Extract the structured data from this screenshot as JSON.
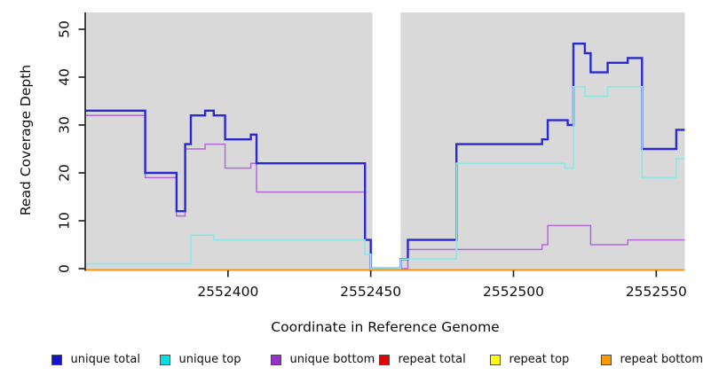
{
  "figure": {
    "background": "#ffffff",
    "panel_background": "#d9d9d9",
    "axis_color": "#262626",
    "legend_swatch_border": "#4a4a4a"
  },
  "chart_data": {
    "type": "line",
    "subtype": "step-after",
    "title": "",
    "xlabel": "Coordinate in Reference Genome",
    "ylabel": "Read Coverage Depth",
    "xlim": [
      2552350,
      2552560
    ],
    "ylim": [
      0,
      53.8
    ],
    "x_ticks": [
      "2552400",
      "2552450",
      "2552500",
      "2552550"
    ],
    "x_tick_values": [
      2552400,
      2552450,
      2552500,
      2552550
    ],
    "y_ticks": [
      "0",
      "10",
      "20",
      "30",
      "40",
      "50"
    ],
    "y_tick_values": [
      0,
      10,
      20,
      30,
      40,
      50
    ],
    "grid": false,
    "legend_position": "bottom",
    "masked_region": [
      2552450.6,
      2552460.5
    ],
    "series": [
      {
        "name": "unique total",
        "line_color": "#2a2ad0",
        "legend_color": "#1414cf",
        "width": 2.4,
        "dy": 0,
        "steps": [
          [
            2552350,
            33
          ],
          [
            2552371,
            20
          ],
          [
            2552382,
            12
          ],
          [
            2552385,
            26
          ],
          [
            2552387,
            32
          ],
          [
            2552392,
            33
          ],
          [
            2552395,
            32
          ],
          [
            2552399,
            27
          ],
          [
            2552408,
            28
          ],
          [
            2552410,
            22
          ],
          [
            2552448,
            6
          ],
          [
            2552450,
            0
          ],
          [
            2552460.5,
            2
          ],
          [
            2552463,
            6
          ],
          [
            2552480,
            26
          ],
          [
            2552510,
            27
          ],
          [
            2552512,
            31
          ],
          [
            2552519,
            30
          ],
          [
            2552521,
            47
          ],
          [
            2552525,
            45
          ],
          [
            2552527,
            41
          ],
          [
            2552533,
            43
          ],
          [
            2552540,
            44
          ],
          [
            2552545,
            25
          ],
          [
            2552557,
            29
          ]
        ]
      },
      {
        "name": "unique top",
        "line_color": "#8fe8e6",
        "legend_color": "#00e2e2",
        "width": 1.7,
        "dy": 0,
        "steps": [
          [
            2552350,
            1
          ],
          [
            2552387,
            7
          ],
          [
            2552395,
            6
          ],
          [
            2552448,
            3
          ],
          [
            2552450,
            0
          ],
          [
            2552460.5,
            2
          ],
          [
            2552480,
            22
          ],
          [
            2552518,
            21
          ],
          [
            2552521,
            38
          ],
          [
            2552525,
            36
          ],
          [
            2552533,
            38
          ],
          [
            2552545,
            19
          ],
          [
            2552557,
            23
          ]
        ]
      },
      {
        "name": "unique bottom",
        "line_color": "#b269d8",
        "legend_color": "#9932cc",
        "width": 1.5,
        "dy": 0,
        "steps": [
          [
            2552350,
            32
          ],
          [
            2552371,
            19
          ],
          [
            2552382,
            11
          ],
          [
            2552385,
            25
          ],
          [
            2552392,
            26
          ],
          [
            2552399,
            21
          ],
          [
            2552408,
            22
          ],
          [
            2552410,
            16
          ],
          [
            2552448,
            3
          ],
          [
            2552450,
            0
          ],
          [
            2552463,
            4
          ],
          [
            2552510,
            5
          ],
          [
            2552512,
            9
          ],
          [
            2552527,
            5
          ],
          [
            2552540,
            6
          ]
        ]
      },
      {
        "name": "repeat total",
        "line_color": "#e60000",
        "legend_color": "#e60000",
        "width": 1.6,
        "dy": 1.5,
        "steps": [
          [
            2552350,
            0
          ]
        ]
      },
      {
        "name": "repeat top",
        "line_color": "#ffff00",
        "legend_color": "#ffff00",
        "width": 1.6,
        "dy": 1.5,
        "steps": [
          [
            2552350,
            0
          ]
        ]
      },
      {
        "name": "repeat bottom",
        "line_color": "#ff9414",
        "legend_color": "#ff9900",
        "width": 2,
        "dy": 1.5,
        "steps": [
          [
            2552350,
            0
          ]
        ]
      }
    ],
    "draw_order": [
      2,
      0,
      1,
      3,
      4,
      5
    ]
  }
}
